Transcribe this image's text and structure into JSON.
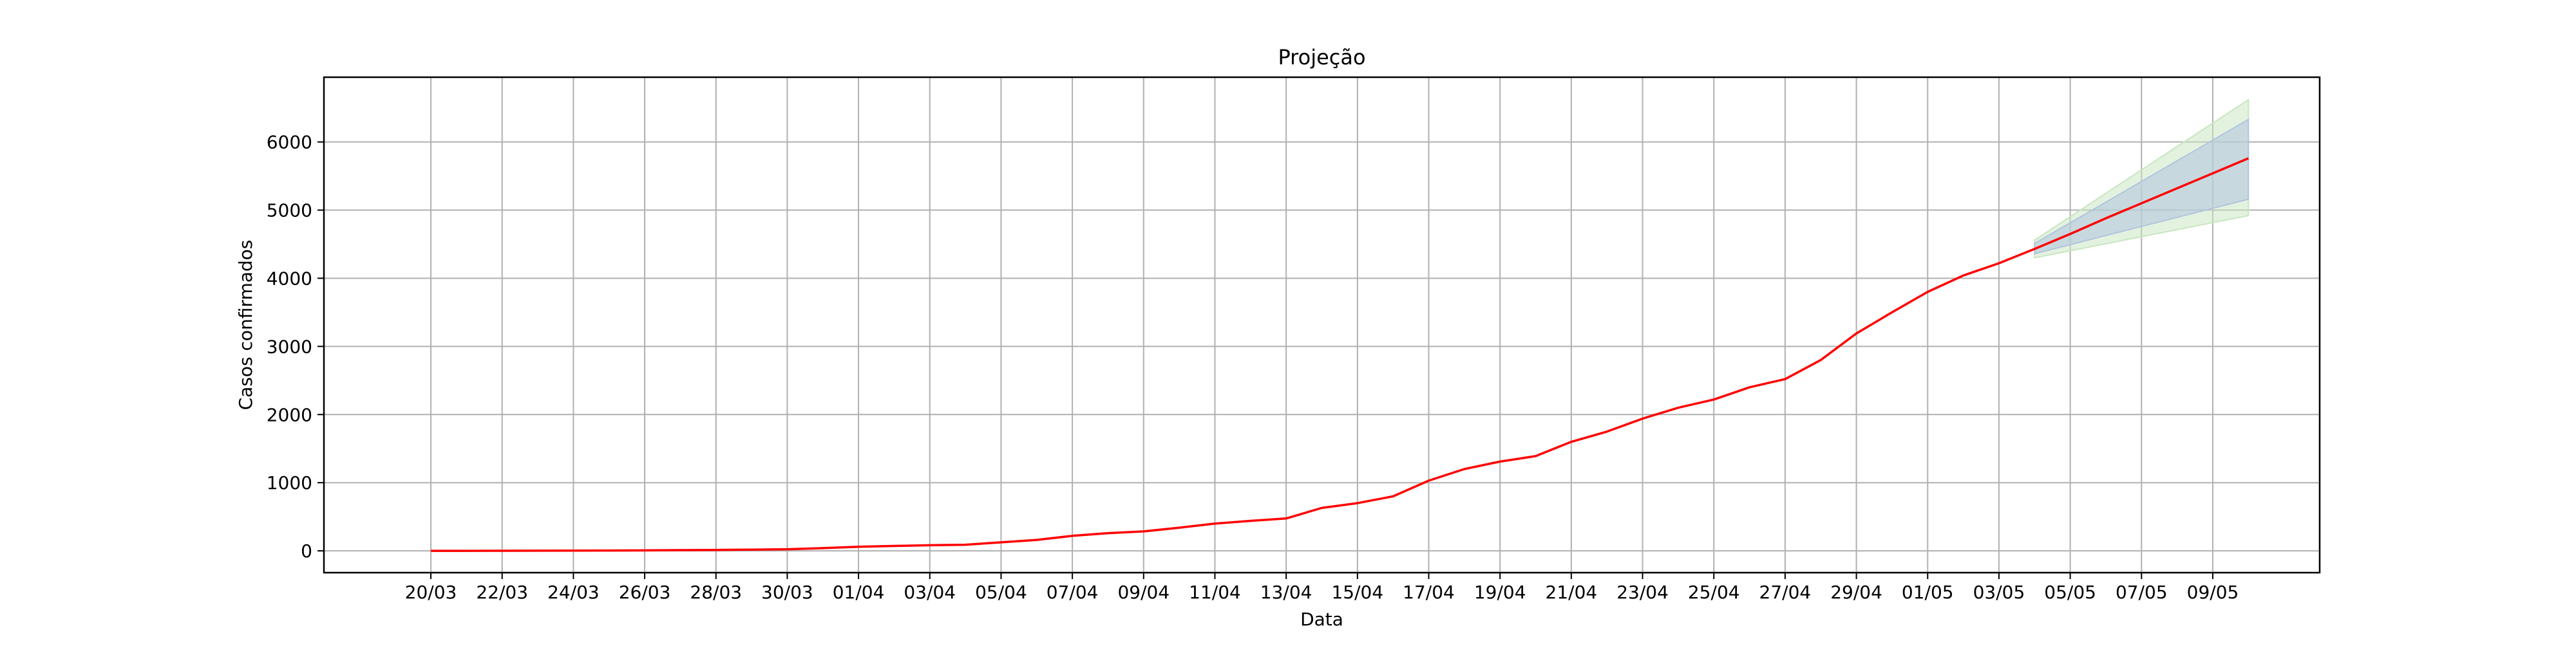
{
  "chart_data": {
    "type": "line",
    "title": "Projeção",
    "xlabel": "Data",
    "ylabel": "Casos confirmados",
    "grid": true,
    "xticks": [
      "20/03",
      "22/03",
      "24/03",
      "26/03",
      "28/03",
      "30/03",
      "01/04",
      "03/04",
      "05/04",
      "07/04",
      "09/04",
      "11/04",
      "13/04",
      "15/04",
      "17/04",
      "19/04",
      "21/04",
      "23/04",
      "25/04",
      "27/04",
      "29/04",
      "01/05",
      "03/05",
      "05/05",
      "07/05",
      "09/05"
    ],
    "yticks": [
      0,
      1000,
      2000,
      3000,
      4000,
      5000,
      6000
    ],
    "xlim": [
      "2020-03-17",
      "2020-05-12"
    ],
    "ylim": [
      -320,
      6950
    ],
    "colors": {
      "line": "#ff0000",
      "band_inner": "#b0c4de",
      "band_outer": "#c8e6c0",
      "grid": "#b0b0b0"
    },
    "series": [
      {
        "dates": [
          "2020-03-20",
          "2020-03-21",
          "2020-03-22",
          "2020-03-23",
          "2020-03-24",
          "2020-03-25",
          "2020-03-26",
          "2020-03-27",
          "2020-03-28",
          "2020-03-29",
          "2020-03-30",
          "2020-03-31",
          "2020-04-01",
          "2020-04-02",
          "2020-04-03",
          "2020-04-04",
          "2020-04-05",
          "2020-04-06",
          "2020-04-07",
          "2020-04-08",
          "2020-04-09",
          "2020-04-10",
          "2020-04-11",
          "2020-04-12",
          "2020-04-13",
          "2020-04-14",
          "2020-04-15",
          "2020-04-16",
          "2020-04-17",
          "2020-04-18",
          "2020-04-19",
          "2020-04-20",
          "2020-04-21",
          "2020-04-22",
          "2020-04-23",
          "2020-04-24",
          "2020-04-25",
          "2020-04-26",
          "2020-04-27",
          "2020-04-28",
          "2020-04-29",
          "2020-04-30",
          "2020-05-01",
          "2020-05-02",
          "2020-05-03",
          "2020-05-04",
          "2020-05-05",
          "2020-05-06",
          "2020-05-07",
          "2020-05-08",
          "2020-05-09",
          "2020-05-10"
        ],
        "values": [
          0,
          0,
          1,
          2,
          3,
          5,
          7,
          10,
          13,
          18,
          24,
          40,
          60,
          72,
          82,
          90,
          125,
          160,
          220,
          260,
          285,
          340,
          400,
          440,
          475,
          630,
          700,
          800,
          1030,
          1200,
          1310,
          1390,
          1600,
          1750,
          1940,
          2100,
          2220,
          2400,
          2520,
          2800,
          3190,
          3500,
          3800,
          4040,
          4220,
          4430,
          4650,
          4880,
          5100,
          5320,
          5540,
          5760
        ]
      }
    ],
    "projection_bands": [
      {
        "dates": [
          "2020-05-04",
          "2020-05-10"
        ],
        "upper": [
          4560,
          6620
        ],
        "lower": [
          4300,
          4920
        ]
      },
      {
        "dates": [
          "2020-05-04",
          "2020-05-10"
        ],
        "upper": [
          4510,
          6330
        ],
        "lower": [
          4360,
          5160
        ]
      }
    ]
  }
}
